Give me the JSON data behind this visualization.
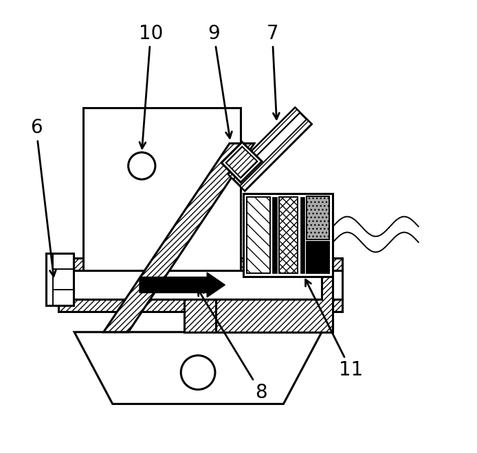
{
  "bg_color": "#ffffff",
  "line_color": "#000000",
  "figsize": [
    6.94,
    6.6
  ],
  "dpi": 100,
  "lw_main": 2.2,
  "lw_thin": 1.4,
  "label_fontsize": 20
}
